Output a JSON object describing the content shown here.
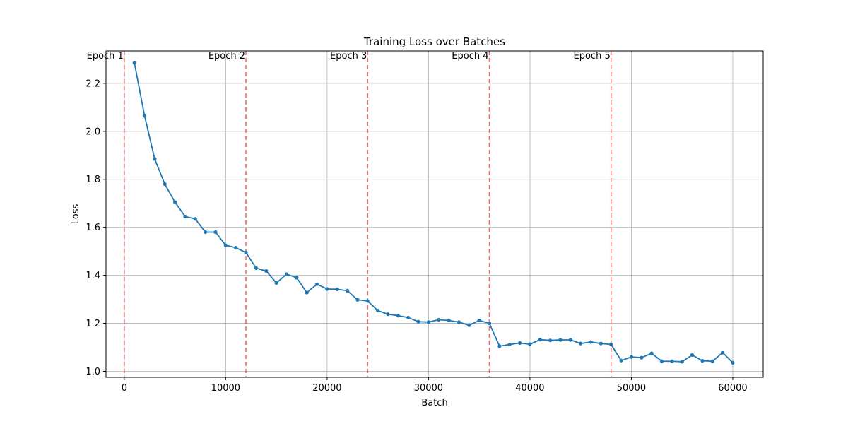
{
  "chart_data": {
    "type": "line",
    "title": "Training Loss over Batches",
    "xlabel": "Batch",
    "ylabel": "Loss",
    "xlim": [
      -1800,
      63000
    ],
    "ylim": [
      0.975,
      2.335
    ],
    "xticks": [
      0,
      10000,
      20000,
      30000,
      40000,
      50000,
      60000
    ],
    "xtick_labels": [
      "0",
      "10000",
      "20000",
      "30000",
      "40000",
      "50000",
      "60000"
    ],
    "yticks": [
      1.0,
      1.2,
      1.4,
      1.6,
      1.8,
      2.0,
      2.2
    ],
    "ytick_labels": [
      "1.0",
      "1.2",
      "1.4",
      "1.6",
      "1.8",
      "2.0",
      "2.2"
    ],
    "grid": true,
    "series": [
      {
        "color": "#1f77b4",
        "marker": "circle",
        "x": [
          1000,
          2000,
          3000,
          4000,
          5000,
          6000,
          7000,
          8000,
          9000,
          10000,
          11000,
          12000,
          13000,
          14000,
          15000,
          16000,
          17000,
          18000,
          19000,
          20000,
          21000,
          22000,
          23000,
          24000,
          25000,
          26000,
          27000,
          28000,
          29000,
          30000,
          31000,
          32000,
          33000,
          34000,
          35000,
          36000,
          37000,
          38000,
          39000,
          40000,
          41000,
          42000,
          43000,
          44000,
          45000,
          46000,
          47000,
          48000,
          49000,
          50000,
          51000,
          52000,
          53000,
          54000,
          55000,
          56000,
          57000,
          58000,
          59000,
          60000
        ],
        "values": [
          2.285,
          2.065,
          1.885,
          1.78,
          1.705,
          1.645,
          1.635,
          1.58,
          1.58,
          1.525,
          1.515,
          1.495,
          1.43,
          1.418,
          1.368,
          1.405,
          1.39,
          1.328,
          1.363,
          1.343,
          1.342,
          1.336,
          1.298,
          1.293,
          1.253,
          1.238,
          1.232,
          1.224,
          1.207,
          1.205,
          1.215,
          1.212,
          1.205,
          1.192,
          1.212,
          1.2,
          1.105,
          1.112,
          1.118,
          1.113,
          1.132,
          1.129,
          1.131,
          1.131,
          1.116,
          1.122,
          1.116,
          1.112,
          1.045,
          1.06,
          1.057,
          1.075,
          1.042,
          1.042,
          1.04,
          1.068,
          1.044,
          1.042,
          1.078,
          1.036
        ]
      }
    ],
    "vlines": {
      "color": "#ef5350",
      "style": "dashed",
      "x": [
        0,
        12000,
        24000,
        36000,
        48000
      ],
      "labels": [
        "Epoch 1",
        "Epoch 2",
        "Epoch 3",
        "Epoch 4",
        "Epoch 5"
      ]
    }
  }
}
